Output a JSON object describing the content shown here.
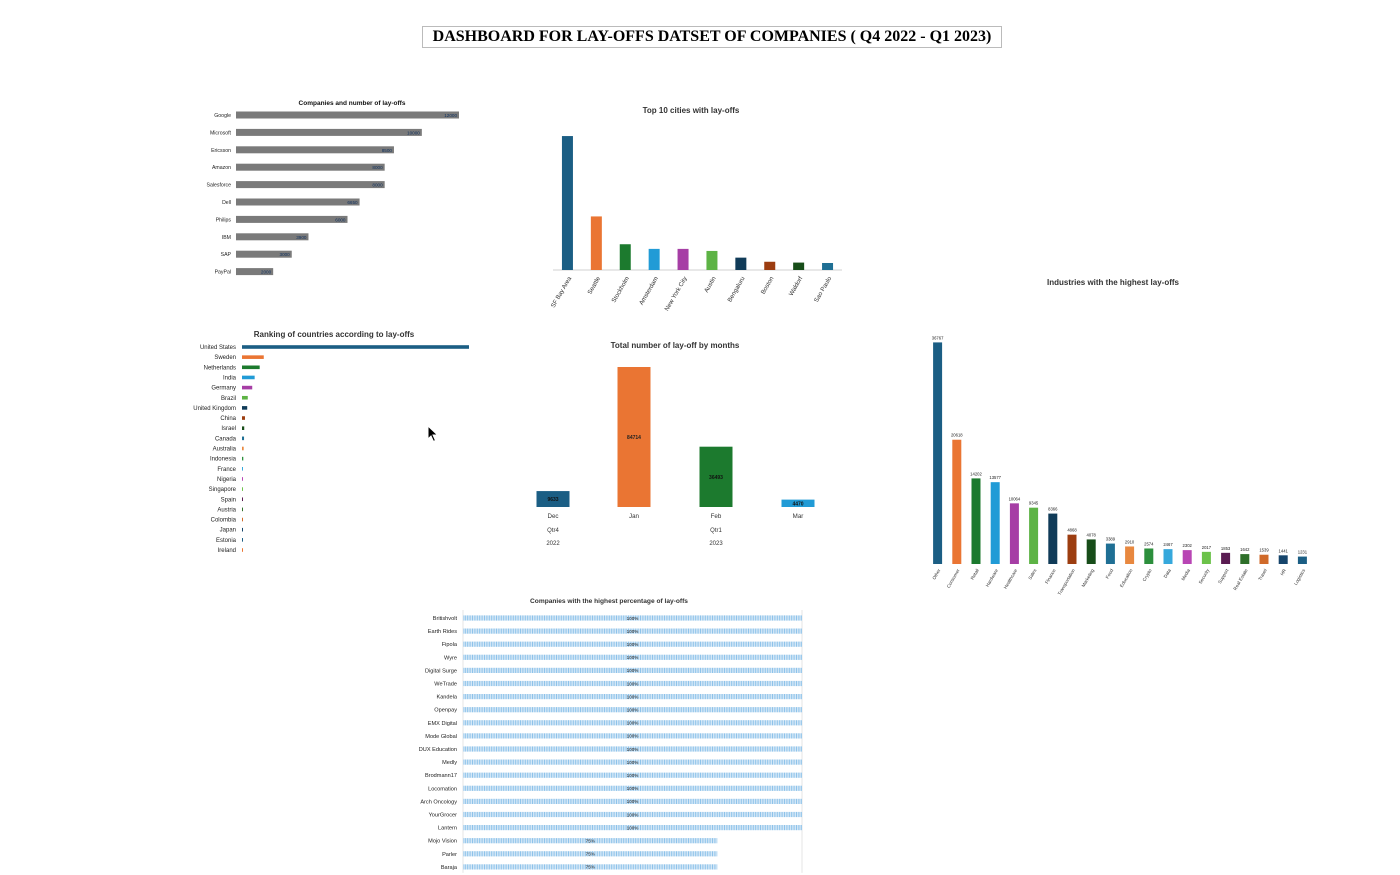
{
  "dashboard": {
    "title": "DASHBOARD FOR LAY-OFFS DATSET OF COMPANIES ( Q4 2022 - Q1 2023)"
  },
  "palette": [
    "#1b5e84",
    "#ea7533",
    "#1c7a2e",
    "#219bd6",
    "#a63ea5",
    "#5db345",
    "#103b58",
    "#9c3d10",
    "#174d19",
    "#1f6f94",
    "#e8883f",
    "#2c8f3c",
    "#36a8dc",
    "#b845b4",
    "#6cc24a",
    "#5a1c52",
    "#2e6f2a",
    "#d06a2a",
    "#16456b"
  ],
  "chart_data": [
    {
      "id": "companies",
      "type": "bar",
      "orientation": "horizontal",
      "title": "Companies and number of lay-offs",
      "categories": [
        "Google",
        "Microsoft",
        "Ericsson",
        "Amazon",
        "Salesforce",
        "Dell",
        "Philips",
        "IBM",
        "SAP",
        "PayPal"
      ],
      "values": [
        12000,
        10000,
        8500,
        8000,
        8000,
        6650,
        6000,
        3900,
        3000,
        2000
      ],
      "xlim": [
        0,
        12000
      ],
      "color": "#7a7a7a"
    },
    {
      "id": "cities",
      "type": "bar",
      "title": "Top 10 cities with lay-offs",
      "categories": [
        "SF Bay Area",
        "Seattle",
        "Stockholm",
        "Amsterdam",
        "New York City",
        "Austin",
        "Bengaluru",
        "Boston",
        "Waldorf",
        "Sao Paulo"
      ],
      "values": [
        130000,
        52000,
        25000,
        20500,
        20500,
        18500,
        12000,
        8000,
        7200,
        6800
      ],
      "ylim": [
        0,
        132000
      ]
    },
    {
      "id": "industries",
      "type": "bar",
      "title": "Industries  with the highest  lay-offs",
      "categories": [
        "Other",
        "Consumer",
        "Retail",
        "Hardware",
        "Healthcare",
        "Sales",
        "Finance",
        "Transportation",
        "Marketing",
        "Food",
        "Education",
        "Crypto",
        "Data",
        "Media",
        "Security",
        "Support",
        "Real Estate",
        "Travel",
        "HR",
        "Logistics"
      ],
      "values": [
        36767,
        20618,
        14202,
        13577,
        10064,
        9345,
        8366,
        4868,
        4078,
        3389,
        2910,
        2574,
        2467,
        2302,
        2017,
        1853,
        1642,
        1539,
        1441,
        1231
      ],
      "ylim": [
        0,
        37000
      ]
    },
    {
      "id": "countries",
      "type": "bar",
      "orientation": "horizontal",
      "title": "Ranking of countries according to lay-offs",
      "categories": [
        "United States",
        "Sweden",
        "Netherlands",
        "India",
        "Germany",
        "Brazil",
        "United Kingdom",
        "China",
        "Israel",
        "Canada",
        "Australia",
        "Indonesia",
        "France",
        "Nigeria",
        "Singapore",
        "Spain",
        "Austria",
        "Colombia",
        "Japan",
        "Estonia",
        "Ireland"
      ],
      "values": [
        122000,
        11700,
        9500,
        6800,
        5500,
        3100,
        2800,
        1600,
        1200,
        1100,
        900,
        700,
        500,
        400,
        300,
        250,
        200,
        150,
        120,
        100,
        80
      ],
      "xlim": [
        0,
        122000
      ]
    },
    {
      "id": "months",
      "type": "bar",
      "title": "Total number of lay-off by months",
      "categories": [
        "Dec",
        "Jan",
        "Feb",
        "Mar"
      ],
      "quarters": [
        "Qtr4",
        "Qtr1"
      ],
      "years": [
        "2022",
        "2023"
      ],
      "values": [
        9633,
        84714,
        36493,
        4470
      ],
      "ylim": [
        0,
        84714
      ]
    },
    {
      "id": "percentage",
      "type": "bar",
      "orientation": "horizontal",
      "title": "Companies with the highest percentage of lay-offs",
      "categories": [
        "Britishvolt",
        "Earth Rides",
        "Fipola",
        "Wyre",
        "Digital Surge",
        "WeTrade",
        "Kandela",
        "Openpay",
        "EMX Digital",
        "Mode Global",
        "DUX Education",
        "Medly",
        "Brodmann17",
        "Locomation",
        "Arch Oncology",
        "YourGrocer",
        "Lantern",
        "Mojo Vision",
        "Parler",
        "Baraja"
      ],
      "values": [
        100,
        100,
        100,
        100,
        100,
        100,
        100,
        100,
        100,
        100,
        100,
        100,
        100,
        100,
        100,
        100,
        100,
        75,
        75,
        75
      ],
      "value_labels": [
        "100%",
        "100%",
        "100%",
        "100%",
        "100%",
        "100%",
        "100%",
        "100%",
        "100%",
        "100%",
        "100%",
        "100%",
        "100%",
        "100%",
        "100%",
        "100%",
        "100%",
        "75%",
        "75%",
        "75%"
      ],
      "xlim": [
        0,
        100
      ]
    }
  ]
}
